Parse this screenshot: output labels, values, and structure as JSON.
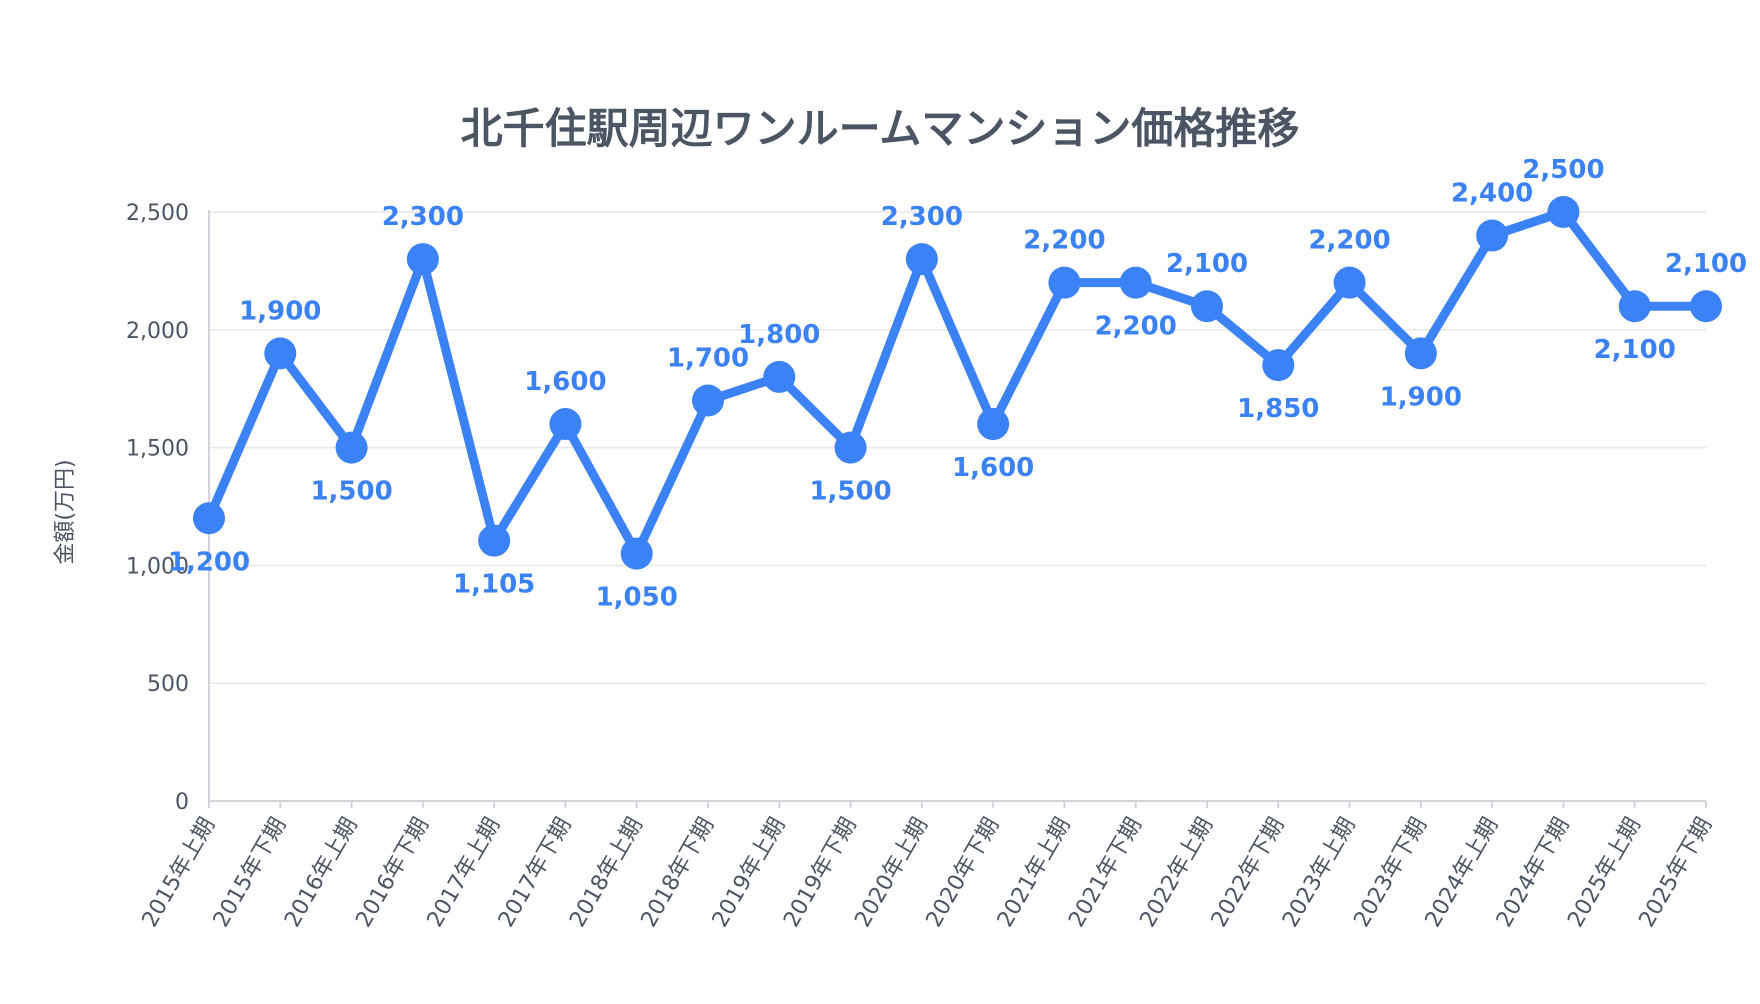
{
  "chart_data": {
    "type": "line",
    "title": "北千住駅周辺ワンルームマンション価格推移",
    "ylabel": "金額(万円)",
    "xlabel": "",
    "ylim": [
      0,
      2500
    ],
    "yticks": [
      0,
      500,
      1000,
      1500,
      2000,
      2500
    ],
    "ytick_labels": [
      "0",
      "500",
      "1,000",
      "1,500",
      "2,000",
      "2,500"
    ],
    "grid": true,
    "legend": "none",
    "color": "#3b82f6",
    "categories": [
      "2015年上期",
      "2015年下期",
      "2016年上期",
      "2016年下期",
      "2017年上期",
      "2017年下期",
      "2018年上期",
      "2018年下期",
      "2019年上期",
      "2019年下期",
      "2020年上期",
      "2020年下期",
      "2021年上期",
      "2021年下期",
      "2022年上期",
      "2022年下期",
      "2023年上期",
      "2023年下期",
      "2024年上期",
      "2024年下期",
      "2025年上期",
      "2025年下期"
    ],
    "series": [
      {
        "values": [
          1200,
          1900,
          1500,
          2300,
          1105,
          1600,
          1050,
          1700,
          1800,
          1500,
          2300,
          1600,
          2200,
          2200,
          2100,
          1850,
          2200,
          1900,
          2400,
          2500,
          2100,
          2100
        ],
        "data_labels": [
          "1,200",
          "1,900",
          "1,500",
          "2,300",
          "1,105",
          "1,600",
          "1,050",
          "1,700",
          "1,800",
          "1,500",
          "2,300",
          "1,600",
          "2,200",
          "2,200",
          "2,100",
          "1,850",
          "2,200",
          "1,900",
          "2,400",
          "2,500",
          "2,100",
          "2,100"
        ]
      }
    ]
  }
}
